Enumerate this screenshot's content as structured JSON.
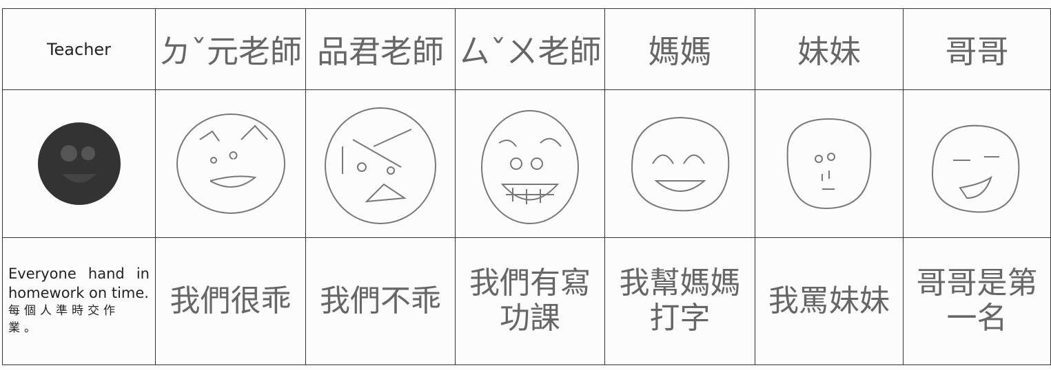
{
  "table": {
    "header_row": [
      "Teacher",
      "ㄉˇ元老師",
      "品君老師",
      "ㄙˇㄨ老師",
      "媽媽",
      "妹妹",
      "哥哥"
    ],
    "statement_row": [
      "Everyone hand in homework on time.",
      "我們很乖",
      "我們不乖",
      "我們有寫功課",
      "我幫媽媽打字",
      "我罵妹妹",
      "哥哥是第一名"
    ],
    "statement_zh": "每個人準時交作業。"
  }
}
